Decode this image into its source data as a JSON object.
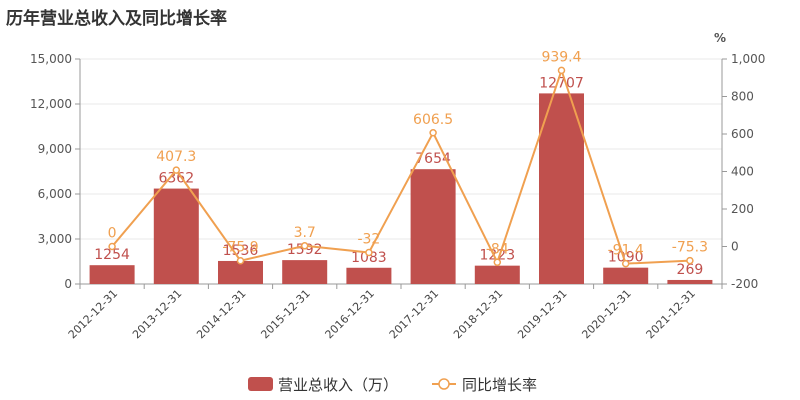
{
  "colors": {
    "bar": "#c0504d",
    "line": "#f0a050",
    "axis": "#999999",
    "grid": "#e8e8e8"
  },
  "chart_data": {
    "type": "bar",
    "title": "历年营业总收入及同比增长率",
    "categories": [
      "2012-12-31",
      "2013-12-31",
      "2014-12-31",
      "2015-12-31",
      "2016-12-31",
      "2017-12-31",
      "2018-12-31",
      "2019-12-31",
      "2020-12-31",
      "2021-12-31"
    ],
    "left_axis": {
      "ylim": [
        0,
        15000
      ],
      "ticks": [
        "0",
        "3,000",
        "6,000",
        "9,000",
        "12,000",
        "15,000"
      ],
      "tick_values": [
        0,
        3000,
        6000,
        9000,
        12000,
        15000
      ]
    },
    "right_axis": {
      "label": "%",
      "ylim": [
        -200,
        1000
      ],
      "ticks": [
        "-200",
        "0",
        "200",
        "400",
        "600",
        "800",
        "1,000"
      ],
      "tick_values": [
        -200,
        0,
        200,
        400,
        600,
        800,
        1000
      ]
    },
    "series": [
      {
        "name": "营业总收入（万）",
        "type": "bar",
        "axis": "left",
        "values": [
          1254,
          6362,
          1536,
          1592,
          1083,
          7654,
          1223,
          12707,
          1090,
          269
        ],
        "labels": [
          "1254",
          "6362",
          "1536",
          "1592",
          "1083",
          "7654",
          "1223",
          "12707",
          "1090",
          "269"
        ]
      },
      {
        "name": "同比增长率",
        "type": "line",
        "axis": "right",
        "values": [
          0,
          407.3,
          -75.9,
          3.7,
          -32,
          606.5,
          -84,
          939.4,
          -91.4,
          -75.3
        ],
        "labels": [
          "0",
          "407.3",
          "-75.9",
          "3.7",
          "-32",
          "606.5",
          "-84",
          "939.4",
          "-91.4",
          "-75.3"
        ]
      }
    ],
    "legend": {
      "position": "bottom-center",
      "items": [
        "营业总收入（万）",
        "同比增长率"
      ]
    },
    "grid": true
  }
}
